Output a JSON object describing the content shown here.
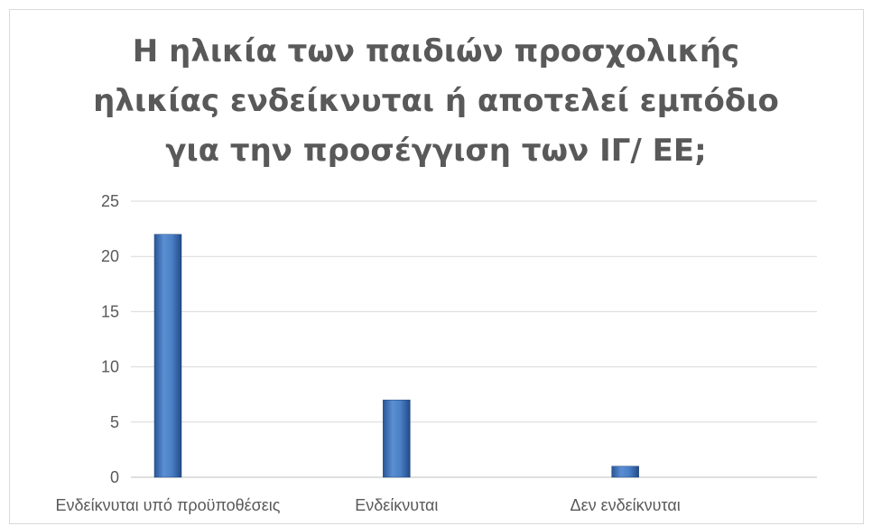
{
  "chart_data": {
    "type": "bar",
    "title_lines": [
      "Η ηλικία των παιδιών προσχολικής",
      "ηλικίας ενδείκνυται ή αποτελεί εμπόδιο",
      "για την προσέγγιση των ΙΓ/ ΕΕ;"
    ],
    "categories": [
      "Ενδείκνυται υπό προϋποθέσεις",
      "Ενδείκνυται",
      "Δεν ενδείκνυται"
    ],
    "values": [
      22,
      7,
      1
    ],
    "ylim": [
      0,
      25
    ],
    "yticks": [
      "0",
      "5",
      "10",
      "15",
      "20",
      "25"
    ],
    "grid": true,
    "bar_color": "#3f72b8"
  }
}
